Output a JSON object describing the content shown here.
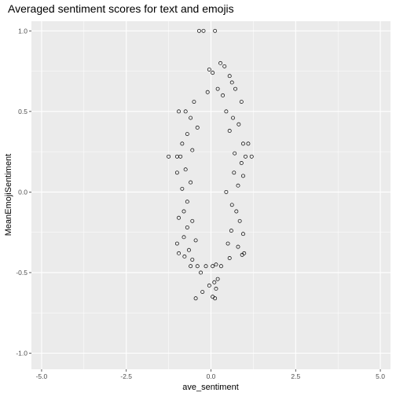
{
  "chart_data": {
    "type": "scatter",
    "title": "Averaged sentiment scores for text and emojis",
    "xlabel": "ave_sentiment",
    "ylabel": "MeanEmojiSentiment",
    "xlim": [
      -5.3,
      5.3
    ],
    "ylim": [
      -1.1,
      1.06
    ],
    "xticks": [
      -5,
      -2.5,
      0,
      2.5,
      5
    ],
    "xtick_labels": [
      "-5.0",
      "-2.5",
      "0.0",
      "2.5",
      "5.0"
    ],
    "yticks": [
      -1,
      -0.5,
      0,
      0.5,
      1
    ],
    "ytick_labels": [
      "-1.0",
      "-0.5",
      "0.0",
      "0.5",
      "1.0"
    ],
    "grid": true,
    "marker": "open-circle",
    "colors": {
      "panel": "#ebebeb",
      "grid": "#ffffff",
      "point": "#000000"
    },
    "series": [
      {
        "points": [
          [
            -0.35,
            1.0
          ],
          [
            -0.22,
            1.0
          ],
          [
            0.12,
            1.0
          ],
          [
            0.28,
            0.8
          ],
          [
            0.4,
            0.78
          ],
          [
            0.55,
            0.72
          ],
          [
            0.62,
            0.68
          ],
          [
            -0.05,
            0.76
          ],
          [
            0.05,
            0.74
          ],
          [
            -0.1,
            0.62
          ],
          [
            0.2,
            0.64
          ],
          [
            0.35,
            0.6
          ],
          [
            0.72,
            0.64
          ],
          [
            0.9,
            0.56
          ],
          [
            -0.5,
            0.56
          ],
          [
            -0.75,
            0.5
          ],
          [
            -0.95,
            0.5
          ],
          [
            -0.6,
            0.46
          ],
          [
            0.45,
            0.5
          ],
          [
            0.65,
            0.46
          ],
          [
            0.82,
            0.42
          ],
          [
            -0.4,
            0.4
          ],
          [
            -0.7,
            0.36
          ],
          [
            0.55,
            0.38
          ],
          [
            0.95,
            0.3
          ],
          [
            1.1,
            0.3
          ],
          [
            -0.85,
            0.3
          ],
          [
            -0.55,
            0.26
          ],
          [
            0.7,
            0.24
          ],
          [
            -1.25,
            0.22
          ],
          [
            -1.0,
            0.22
          ],
          [
            -0.9,
            0.22
          ],
          [
            1.02,
            0.22
          ],
          [
            1.2,
            0.22
          ],
          [
            0.9,
            0.18
          ],
          [
            -0.75,
            0.14
          ],
          [
            0.68,
            0.12
          ],
          [
            -1.0,
            0.12
          ],
          [
            0.95,
            0.1
          ],
          [
            -0.6,
            0.06
          ],
          [
            0.8,
            0.04
          ],
          [
            -0.85,
            0.02
          ],
          [
            0.45,
            0.0
          ],
          [
            -0.7,
            -0.06
          ],
          [
            0.62,
            -0.08
          ],
          [
            -0.8,
            -0.12
          ],
          [
            0.75,
            -0.12
          ],
          [
            -0.95,
            -0.16
          ],
          [
            -0.55,
            -0.18
          ],
          [
            0.85,
            -0.18
          ],
          [
            -0.7,
            -0.22
          ],
          [
            0.6,
            -0.24
          ],
          [
            0.95,
            -0.26
          ],
          [
            -0.8,
            -0.28
          ],
          [
            -0.45,
            -0.3
          ],
          [
            0.5,
            -0.32
          ],
          [
            -1.0,
            -0.32
          ],
          [
            0.8,
            -0.34
          ],
          [
            -0.65,
            -0.36
          ],
          [
            0.92,
            -0.39
          ],
          [
            0.98,
            -0.38
          ],
          [
            -0.95,
            -0.38
          ],
          [
            -0.78,
            -0.4
          ],
          [
            0.55,
            -0.41
          ],
          [
            -0.55,
            -0.42
          ],
          [
            -0.4,
            -0.46
          ],
          [
            -0.6,
            -0.46
          ],
          [
            -0.15,
            -0.46
          ],
          [
            0.05,
            -0.46
          ],
          [
            0.15,
            -0.45
          ],
          [
            0.3,
            -0.46
          ],
          [
            -0.3,
            -0.5
          ],
          [
            0.1,
            -0.56
          ],
          [
            0.2,
            -0.54
          ],
          [
            -0.05,
            -0.58
          ],
          [
            0.15,
            -0.6
          ],
          [
            -0.25,
            -0.62
          ],
          [
            0.05,
            -0.65
          ],
          [
            0.12,
            -0.66
          ],
          [
            -0.45,
            -0.66
          ]
        ]
      }
    ]
  }
}
